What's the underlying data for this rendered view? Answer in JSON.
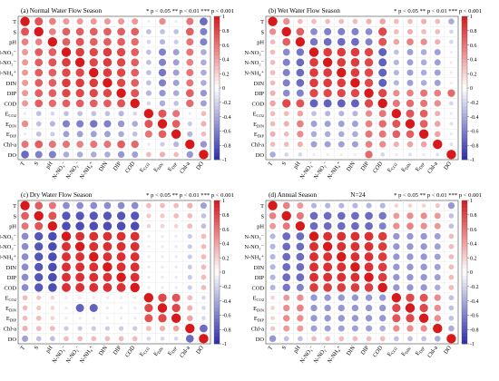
{
  "legend_colors": {
    "positive": "#d7191c",
    "zero": "#ffffff",
    "negative": "#2c2ca8"
  },
  "labels": [
    "T",
    "S",
    "pH",
    "N-NO₃⁻",
    "N-NO₂⁻",
    "N-NH₄⁺",
    "DIN",
    "DIP",
    "COD",
    "E_CO2",
    "E_DIN",
    "E_DIP",
    "Chl-a",
    "DO"
  ],
  "colorbar_ticks": [
    "1",
    "0.8",
    "0.6",
    "0.4",
    "0.2",
    "0",
    "-0.2",
    "-0.4",
    "-0.6",
    "-0.8",
    "-1"
  ],
  "chart_data": [
    {
      "type": "heatmap",
      "title": "(a) Normal Water Flow Season",
      "significance": "* p < 0.05 ** p < 0.01 *** p < 0.001",
      "variables": [
        "T",
        "S",
        "pH",
        "N-NO₃⁻",
        "N-NO₂⁻",
        "N-NH₄⁺",
        "DIN",
        "DIP",
        "COD",
        "E_CO2",
        "E_DIN",
        "E_DIP",
        "Chl-a",
        "DO"
      ],
      "matrix": [
        [
          1,
          0.75,
          0.55,
          0.45,
          0.45,
          0.45,
          0.45,
          0.45,
          0.45,
          -0.1,
          0.5,
          -0.1,
          0.6,
          -0.7
        ],
        [
          0.75,
          1,
          0.55,
          0.7,
          0.7,
          0.7,
          0.7,
          0.7,
          0.7,
          -0.3,
          -0.3,
          -0.3,
          0.7,
          -0.6
        ],
        [
          0.55,
          0.55,
          1,
          0.7,
          0.75,
          0.7,
          0.7,
          0.7,
          0.65,
          -0.2,
          -0.35,
          -0.25,
          0.6,
          -0.6
        ],
        [
          0.45,
          0.7,
          0.7,
          1,
          0.85,
          0.8,
          0.85,
          0.8,
          0.7,
          -0.3,
          -0.6,
          -0.45,
          0.6,
          -0.4
        ],
        [
          0.45,
          0.7,
          0.75,
          0.85,
          1,
          0.8,
          0.85,
          0.8,
          0.7,
          -0.3,
          -0.6,
          -0.45,
          0.55,
          -0.4
        ],
        [
          0.45,
          0.7,
          0.7,
          0.8,
          0.8,
          1,
          0.85,
          0.8,
          0.7,
          -0.3,
          -0.65,
          -0.45,
          0.6,
          -0.4
        ],
        [
          0.45,
          0.7,
          0.7,
          0.85,
          0.85,
          0.85,
          1,
          0.8,
          0.7,
          -0.3,
          -0.6,
          -0.45,
          0.6,
          -0.4
        ],
        [
          0.45,
          0.7,
          0.7,
          0.8,
          0.8,
          0.8,
          0.8,
          1,
          0.75,
          -0.35,
          -0.5,
          -0.4,
          0.7,
          -0.5
        ],
        [
          0.45,
          0.7,
          0.65,
          0.7,
          0.7,
          0.7,
          0.7,
          0.75,
          1,
          -0.2,
          -0.4,
          -0.3,
          0.65,
          -0.45
        ],
        [
          -0.1,
          -0.3,
          -0.2,
          -0.3,
          -0.3,
          -0.3,
          -0.3,
          -0.35,
          -0.2,
          1,
          0.75,
          0.6,
          -0.1,
          0.3
        ],
        [
          0.5,
          -0.3,
          -0.35,
          -0.6,
          -0.6,
          -0.65,
          -0.6,
          -0.5,
          -0.4,
          0.75,
          1,
          0.7,
          -0.25,
          0.35
        ],
        [
          -0.1,
          -0.3,
          -0.25,
          -0.45,
          -0.45,
          -0.45,
          -0.45,
          -0.4,
          -0.3,
          0.6,
          0.7,
          1,
          -0.35,
          0.3
        ],
        [
          0.6,
          0.7,
          0.6,
          0.6,
          0.55,
          0.6,
          0.6,
          0.7,
          0.65,
          -0.1,
          -0.25,
          -0.35,
          1,
          -0.5
        ],
        [
          -0.7,
          -0.6,
          -0.6,
          -0.4,
          -0.4,
          -0.4,
          -0.4,
          -0.5,
          -0.45,
          0.3,
          0.35,
          0.3,
          -0.5,
          1
        ]
      ]
    },
    {
      "type": "heatmap",
      "title": "(b) Wet Water Flow Season",
      "significance": "* p < 0.05 ** p < 0.01 *** p < 0.001",
      "variables": [
        "T",
        "S",
        "pH",
        "N-NO₃⁻",
        "N-NO₂⁻",
        "N-NH₄⁺",
        "DIN",
        "DIP",
        "COD",
        "E_CO2",
        "E_DIN",
        "E_DIP",
        "Chl-a",
        "DO"
      ],
      "matrix": [
        [
          1,
          0.5,
          0.3,
          0.3,
          0.3,
          0.3,
          0.3,
          0.35,
          0.4,
          0.3,
          0.3,
          0.35,
          0.3,
          -0.4
        ],
        [
          0.5,
          1,
          0.7,
          -0.55,
          -0.6,
          -0.6,
          -0.6,
          -0.55,
          0.8,
          0.3,
          0.35,
          0.3,
          0.3,
          -0.2
        ],
        [
          0.3,
          0.7,
          1,
          -0.65,
          -0.7,
          -0.7,
          -0.7,
          -0.6,
          0.75,
          0.4,
          0.55,
          0.5,
          0.35,
          -0.2
        ],
        [
          0.3,
          -0.55,
          -0.65,
          1,
          0.85,
          0.85,
          0.85,
          0.8,
          -0.75,
          -0.3,
          -0.45,
          -0.4,
          -0.45,
          0.1
        ],
        [
          0.3,
          -0.6,
          -0.7,
          0.85,
          1,
          0.85,
          0.85,
          0.8,
          -0.75,
          -0.35,
          -0.45,
          -0.4,
          -0.45,
          0.1
        ],
        [
          0.3,
          -0.6,
          -0.7,
          0.85,
          0.85,
          1,
          0.85,
          0.8,
          -0.75,
          -0.35,
          -0.45,
          -0.4,
          -0.45,
          0.1
        ],
        [
          0.3,
          -0.6,
          -0.7,
          0.85,
          0.85,
          0.85,
          1,
          0.8,
          -0.75,
          -0.35,
          -0.45,
          -0.4,
          -0.45,
          0.1
        ],
        [
          0.35,
          -0.55,
          -0.6,
          0.8,
          0.8,
          0.8,
          0.8,
          1,
          0.8,
          0.5,
          0.55,
          0.6,
          0.55,
          0.65
        ],
        [
          0.4,
          0.8,
          0.75,
          -0.75,
          -0.75,
          -0.75,
          -0.75,
          0.8,
          1,
          0.6,
          0.65,
          0.6,
          0.5,
          -0.2
        ],
        [
          0.3,
          0.3,
          0.4,
          -0.3,
          -0.35,
          -0.35,
          -0.35,
          0.5,
          0.6,
          1,
          0.75,
          0.7,
          0.35,
          -0.1
        ],
        [
          0.3,
          0.35,
          0.55,
          -0.45,
          -0.45,
          -0.45,
          -0.45,
          0.55,
          0.65,
          0.75,
          1,
          0.7,
          0.4,
          -0.15
        ],
        [
          0.35,
          0.3,
          0.5,
          -0.4,
          -0.4,
          -0.4,
          -0.4,
          0.6,
          0.6,
          0.7,
          0.7,
          1,
          0.4,
          -0.1
        ],
        [
          0.3,
          0.3,
          0.35,
          -0.45,
          -0.45,
          -0.45,
          -0.45,
          0.55,
          0.5,
          0.35,
          0.4,
          0.4,
          1,
          -0.15
        ],
        [
          -0.4,
          -0.2,
          -0.2,
          0.1,
          0.1,
          0.1,
          0.1,
          0.65,
          -0.2,
          -0.1,
          -0.15,
          -0.1,
          -0.15,
          1
        ]
      ]
    },
    {
      "type": "heatmap",
      "title": "(c) Dry Water Flow Season",
      "significance": "* p < 0.05 ** p < 0.01 *** p < 0.001",
      "variables": [
        "T",
        "S",
        "pH",
        "N-NO₃⁻",
        "N-NO₂⁻",
        "N-NH₄⁺",
        "DIN",
        "DIP",
        "COD",
        "E_CO2",
        "E_DIN",
        "E_DIP",
        "Chl-a",
        "DO"
      ],
      "matrix": [
        [
          1,
          0.7,
          0.6,
          -0.55,
          -0.55,
          -0.55,
          -0.55,
          -0.55,
          -0.55,
          0.3,
          0.3,
          0.3,
          0.35,
          -0.45
        ],
        [
          0.7,
          1,
          0.75,
          -0.8,
          -0.8,
          -0.8,
          -0.8,
          -0.8,
          -0.8,
          0.25,
          0.25,
          0.3,
          0.3,
          -0.3
        ],
        [
          0.6,
          0.75,
          1,
          -0.85,
          -0.85,
          -0.85,
          -0.85,
          -0.85,
          -0.85,
          0.2,
          0.2,
          0.2,
          0.3,
          -0.3
        ],
        [
          -0.55,
          -0.8,
          -0.85,
          1,
          0.9,
          0.9,
          0.9,
          0.9,
          0.9,
          -0.1,
          -0.1,
          -0.1,
          -0.25,
          0.3
        ],
        [
          -0.55,
          -0.8,
          -0.85,
          0.9,
          1,
          0.9,
          0.9,
          0.9,
          0.9,
          -0.1,
          -0.1,
          -0.1,
          -0.25,
          0.3
        ],
        [
          -0.55,
          -0.8,
          -0.85,
          0.9,
          0.9,
          1,
          0.9,
          0.9,
          0.9,
          -0.1,
          -0.1,
          -0.1,
          -0.25,
          0.3
        ],
        [
          -0.55,
          -0.8,
          -0.85,
          0.9,
          0.9,
          0.9,
          1,
          0.9,
          0.9,
          -0.1,
          -0.1,
          -0.1,
          -0.25,
          0.3
        ],
        [
          -0.55,
          -0.8,
          -0.85,
          0.9,
          0.9,
          0.9,
          0.9,
          1,
          0.9,
          -0.1,
          -0.1,
          -0.1,
          -0.25,
          0.3
        ],
        [
          -0.55,
          -0.8,
          -0.85,
          0.9,
          0.9,
          0.9,
          0.9,
          0.9,
          1,
          -0.1,
          -0.1,
          -0.1,
          -0.25,
          0.3
        ],
        [
          0.3,
          0.25,
          0.2,
          -0.1,
          -0.1,
          -0.1,
          -0.1,
          -0.1,
          -0.1,
          1,
          0.8,
          0.75,
          0.3,
          -0.2
        ],
        [
          0.3,
          0.25,
          0.2,
          -0.1,
          -0.75,
          -0.75,
          -0.1,
          -0.1,
          -0.1,
          0.8,
          1,
          0.8,
          0.35,
          -0.2
        ],
        [
          0.3,
          0.3,
          0.2,
          -0.1,
          -0.1,
          -0.1,
          -0.1,
          -0.1,
          -0.1,
          0.75,
          0.8,
          1,
          0.4,
          -0.2
        ],
        [
          0.35,
          0.3,
          0.3,
          -0.25,
          -0.25,
          -0.25,
          -0.25,
          -0.25,
          -0.25,
          0.3,
          0.35,
          0.4,
          1,
          -0.7
        ],
        [
          -0.45,
          -0.3,
          -0.3,
          0.3,
          0.3,
          0.3,
          0.3,
          0.3,
          0.3,
          -0.2,
          -0.2,
          -0.2,
          -0.7,
          1
        ]
      ]
    },
    {
      "type": "heatmap",
      "title": "(d) Annual Season",
      "subtitle": "N=24",
      "significance": "* p < 0.05 ** p < 0.01 *** p < 0.001",
      "variables": [
        "T",
        "S",
        "pH",
        "N-NO₃⁻",
        "N-NO₂⁻",
        "N-NH₄⁺",
        "DIN",
        "DIP",
        "COD",
        "E_CO2",
        "E_DIN",
        "E_DIP",
        "Chl-a",
        "DO"
      ],
      "matrix": [
        [
          1,
          0.55,
          0.45,
          -0.35,
          -0.35,
          -0.35,
          -0.35,
          -0.35,
          -0.35,
          0.2,
          0.2,
          0.2,
          0.25,
          -0.5
        ],
        [
          0.55,
          1,
          0.6,
          -0.7,
          -0.7,
          -0.7,
          -0.7,
          -0.7,
          -0.65,
          0.45,
          0.5,
          0.5,
          0.45,
          -0.3
        ],
        [
          0.45,
          0.6,
          1,
          -0.7,
          -0.7,
          -0.7,
          -0.7,
          -0.7,
          -0.6,
          0.5,
          0.55,
          0.5,
          0.45,
          -0.3
        ],
        [
          -0.35,
          -0.7,
          -0.7,
          1,
          0.9,
          0.9,
          0.9,
          0.9,
          0.85,
          -0.5,
          -0.5,
          -0.5,
          -0.45,
          0.3
        ],
        [
          -0.35,
          -0.7,
          -0.7,
          0.9,
          1,
          0.9,
          0.9,
          0.9,
          0.85,
          -0.5,
          -0.5,
          -0.5,
          -0.45,
          0.3
        ],
        [
          -0.35,
          -0.7,
          -0.7,
          0.9,
          0.9,
          1,
          0.9,
          0.9,
          0.85,
          -0.5,
          -0.5,
          -0.5,
          -0.45,
          0.3
        ],
        [
          -0.35,
          -0.7,
          -0.7,
          0.9,
          0.9,
          0.9,
          1,
          0.9,
          0.85,
          -0.5,
          -0.5,
          -0.5,
          -0.45,
          0.3
        ],
        [
          -0.35,
          -0.7,
          -0.7,
          0.9,
          0.9,
          0.9,
          0.9,
          1,
          0.85,
          -0.5,
          -0.5,
          -0.5,
          -0.45,
          0.3
        ],
        [
          -0.35,
          -0.65,
          -0.6,
          0.85,
          0.85,
          0.85,
          0.85,
          0.85,
          1,
          -0.5,
          -0.5,
          -0.5,
          -0.4,
          0.3
        ],
        [
          0.2,
          0.45,
          0.5,
          -0.5,
          -0.5,
          -0.5,
          -0.5,
          -0.5,
          -0.5,
          1,
          0.8,
          0.75,
          0.5,
          -0.3
        ],
        [
          0.2,
          0.5,
          0.55,
          -0.5,
          -0.5,
          -0.5,
          -0.5,
          -0.5,
          -0.5,
          0.8,
          1,
          0.8,
          0.5,
          -0.3
        ],
        [
          0.2,
          0.5,
          0.5,
          -0.5,
          -0.5,
          -0.5,
          -0.5,
          -0.5,
          -0.5,
          0.75,
          0.8,
          1,
          0.5,
          -0.3
        ],
        [
          0.25,
          0.45,
          0.45,
          -0.45,
          -0.45,
          -0.45,
          -0.45,
          -0.45,
          -0.4,
          0.5,
          0.5,
          0.5,
          1,
          -0.4
        ],
        [
          -0.5,
          -0.3,
          -0.3,
          0.3,
          0.3,
          0.3,
          0.3,
          0.3,
          0.3,
          -0.3,
          -0.3,
          -0.3,
          -0.4,
          1
        ]
      ]
    }
  ]
}
